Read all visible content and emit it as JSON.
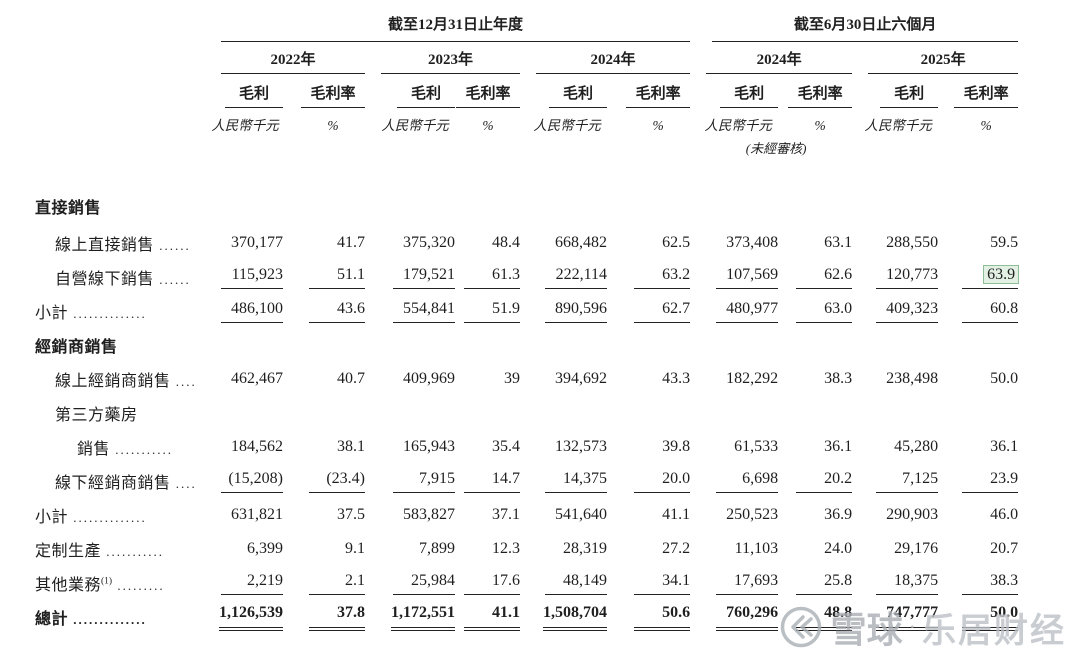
{
  "table": {
    "period_groups": [
      {
        "title": "截至12月31日止年度"
      },
      {
        "title": "截至6月30日止六個月"
      }
    ],
    "years": [
      {
        "label": "2022年"
      },
      {
        "label": "2023年"
      },
      {
        "label": "2024年"
      },
      {
        "label": "2024年"
      },
      {
        "label": "2025年"
      }
    ],
    "col_headers": {
      "gp": "毛利",
      "gpm": "毛利率",
      "gp_unit": "人民幣千元",
      "gpm_unit": "%"
    },
    "unaudited_note": "(未經審核)",
    "rows": [
      {
        "type": "section",
        "indent": 0,
        "label": "直接銷售"
      },
      {
        "type": "data",
        "indent": 1,
        "label": "線上直接銷售",
        "dots": "......",
        "values": [
          "370,177",
          "41.7",
          "375,320",
          "48.4",
          "668,482",
          "62.5",
          "373,408",
          "63.1",
          "288,550",
          "59.5"
        ]
      },
      {
        "type": "data",
        "indent": 1,
        "label": "自營線下銷售",
        "dots": "......",
        "underline": "single",
        "highlight_index": 9,
        "values": [
          "115,923",
          "51.1",
          "179,521",
          "61.3",
          "222,114",
          "63.2",
          "107,569",
          "62.6",
          "120,773",
          "63.9"
        ]
      },
      {
        "type": "subtotal",
        "indent": 0,
        "label": "小計",
        "dots": "..............",
        "underline": "single",
        "values": [
          "486,100",
          "43.6",
          "554,841",
          "51.9",
          "890,596",
          "62.7",
          "480,977",
          "63.0",
          "409,323",
          "60.8"
        ]
      },
      {
        "type": "section",
        "indent": 0,
        "label": "經銷商銷售"
      },
      {
        "type": "data",
        "indent": 1,
        "label": "線上經銷商銷售",
        "dots": "....",
        "values": [
          "462,467",
          "40.7",
          "409,969",
          "39",
          "394,692",
          "43.3",
          "182,292",
          "38.3",
          "238,498",
          "50.0"
        ]
      },
      {
        "type": "labelonly",
        "indent": 1,
        "label": "第三方藥房"
      },
      {
        "type": "data",
        "indent": 2,
        "label": "銷售",
        "dots": "...........",
        "values": [
          "184,562",
          "38.1",
          "165,943",
          "35.4",
          "132,573",
          "39.8",
          "61,533",
          "36.1",
          "45,280",
          "36.1"
        ]
      },
      {
        "type": "data",
        "indent": 1,
        "label": "線下經銷商銷售",
        "dots": "....",
        "underline": "single",
        "values": [
          "(15,208)",
          "(23.4)",
          "7,915",
          "14.7",
          "14,375",
          "20.0",
          "6,698",
          "20.2",
          "7,125",
          "23.9"
        ]
      },
      {
        "type": "subtotal",
        "indent": 0,
        "label": "小計",
        "dots": "..............",
        "values": [
          "631,821",
          "37.5",
          "583,827",
          "37.1",
          "541,640",
          "41.1",
          "250,523",
          "36.9",
          "290,903",
          "46.0"
        ]
      },
      {
        "type": "data",
        "indent": 0,
        "label": "定制生產",
        "dots": "...........",
        "values": [
          "6,399",
          "9.1",
          "7,899",
          "12.3",
          "28,319",
          "27.2",
          "11,103",
          "24.0",
          "29,176",
          "20.7"
        ]
      },
      {
        "type": "data",
        "indent": 0,
        "label": "其他業務",
        "sup": "(1)",
        "dots": ".........",
        "underline": "single",
        "values": [
          "2,219",
          "2.1",
          "25,984",
          "17.6",
          "48,149",
          "34.1",
          "17,693",
          "25.8",
          "18,375",
          "38.3"
        ]
      },
      {
        "type": "total",
        "indent": 0,
        "label": "總計",
        "dots": "..............",
        "underline": "double",
        "values": [
          "1,126,539",
          "37.8",
          "1,172,551",
          "41.1",
          "1,508,704",
          "50.6",
          "760,296",
          "48.8",
          "747,777",
          "50.0"
        ]
      }
    ]
  },
  "highlight_color": "#e2f1e4",
  "rule_color": "#222222",
  "watermark": {
    "logo": "xueqiu-snowball-icon",
    "text1": "雪球",
    "sep": "·",
    "text2": "乐居财经"
  }
}
